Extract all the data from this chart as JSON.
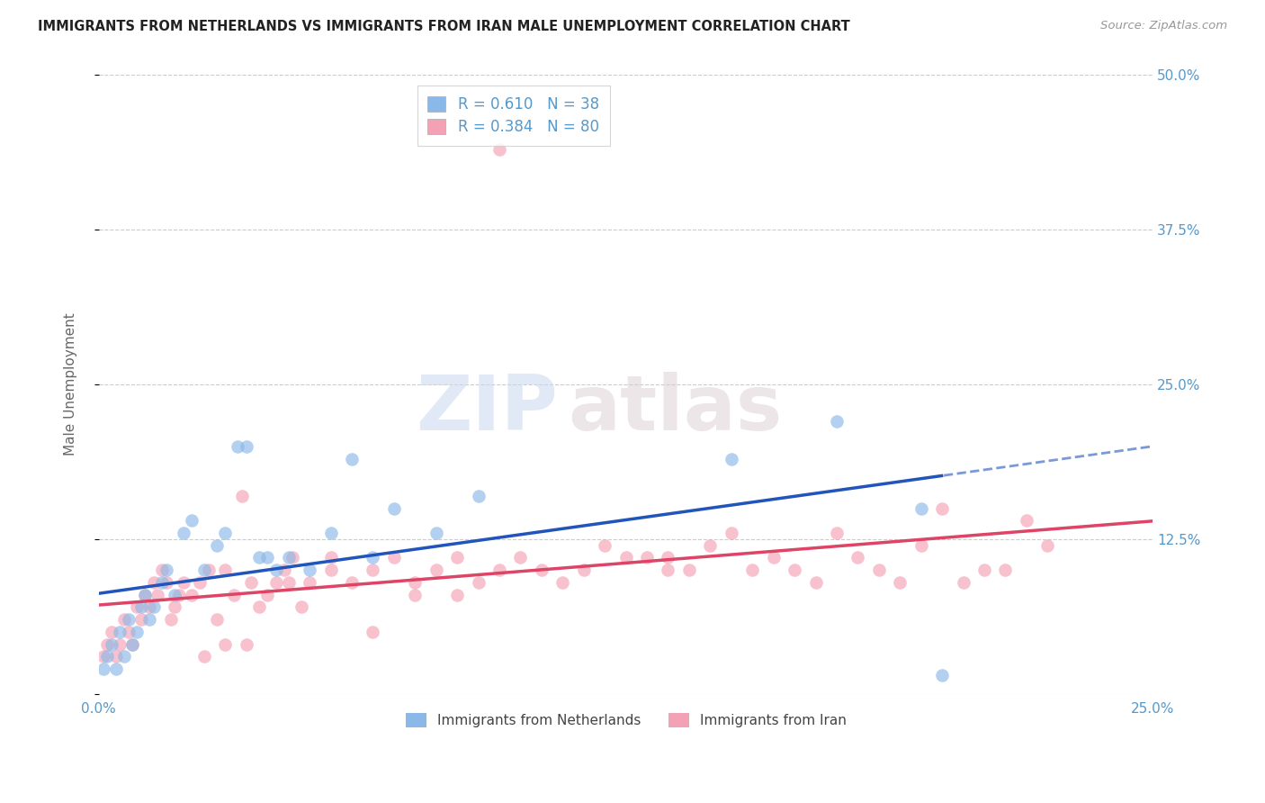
{
  "title": "IMMIGRANTS FROM NETHERLANDS VS IMMIGRANTS FROM IRAN MALE UNEMPLOYMENT CORRELATION CHART",
  "source": "Source: ZipAtlas.com",
  "xlabel": "",
  "ylabel": "Male Unemployment",
  "xlim": [
    0,
    0.25
  ],
  "ylim": [
    0,
    0.5
  ],
  "xticks": [
    0.0,
    0.05,
    0.1,
    0.15,
    0.2,
    0.25
  ],
  "xticklabels": [
    "0.0%",
    "",
    "",
    "",
    "",
    "25.0%"
  ],
  "yticks": [
    0.0,
    0.125,
    0.25,
    0.375,
    0.5
  ],
  "yticklabels": [
    "",
    "12.5%",
    "25.0%",
    "37.5%",
    "50.0%"
  ],
  "color_netherlands": "#8ab8e8",
  "color_iran": "#f4a0b5",
  "color_netherlands_line": "#2255bb",
  "color_iran_line": "#dd4466",
  "legend_R_netherlands": "0.610",
  "legend_N_netherlands": "38",
  "legend_R_iran": "0.384",
  "legend_N_iran": "80",
  "legend_label_netherlands": "Immigrants from Netherlands",
  "legend_label_iran": "Immigrants from Iran",
  "netherlands_x": [
    0.001,
    0.002,
    0.003,
    0.004,
    0.005,
    0.006,
    0.007,
    0.008,
    0.009,
    0.01,
    0.011,
    0.012,
    0.013,
    0.015,
    0.016,
    0.018,
    0.02,
    0.022,
    0.025,
    0.028,
    0.03,
    0.033,
    0.035,
    0.038,
    0.04,
    0.042,
    0.045,
    0.05,
    0.055,
    0.06,
    0.065,
    0.07,
    0.08,
    0.09,
    0.15,
    0.175,
    0.195,
    0.2
  ],
  "netherlands_y": [
    0.02,
    0.03,
    0.04,
    0.02,
    0.05,
    0.03,
    0.06,
    0.04,
    0.05,
    0.07,
    0.08,
    0.06,
    0.07,
    0.09,
    0.1,
    0.08,
    0.13,
    0.14,
    0.1,
    0.12,
    0.13,
    0.2,
    0.2,
    0.11,
    0.11,
    0.1,
    0.11,
    0.1,
    0.13,
    0.19,
    0.11,
    0.15,
    0.13,
    0.16,
    0.19,
    0.22,
    0.15,
    0.015
  ],
  "iran_x": [
    0.001,
    0.002,
    0.003,
    0.004,
    0.005,
    0.006,
    0.007,
    0.008,
    0.009,
    0.01,
    0.011,
    0.012,
    0.013,
    0.014,
    0.015,
    0.016,
    0.017,
    0.018,
    0.019,
    0.02,
    0.022,
    0.024,
    0.026,
    0.028,
    0.03,
    0.032,
    0.034,
    0.036,
    0.038,
    0.04,
    0.042,
    0.044,
    0.046,
    0.048,
    0.05,
    0.055,
    0.06,
    0.065,
    0.07,
    0.075,
    0.08,
    0.085,
    0.09,
    0.095,
    0.1,
    0.105,
    0.11,
    0.115,
    0.12,
    0.125,
    0.13,
    0.135,
    0.14,
    0.145,
    0.15,
    0.155,
    0.16,
    0.165,
    0.17,
    0.175,
    0.18,
    0.185,
    0.19,
    0.195,
    0.2,
    0.205,
    0.21,
    0.215,
    0.22,
    0.225,
    0.025,
    0.035,
    0.045,
    0.055,
    0.065,
    0.075,
    0.085,
    0.135,
    0.095,
    0.03
  ],
  "iran_y": [
    0.03,
    0.04,
    0.05,
    0.03,
    0.04,
    0.06,
    0.05,
    0.04,
    0.07,
    0.06,
    0.08,
    0.07,
    0.09,
    0.08,
    0.1,
    0.09,
    0.06,
    0.07,
    0.08,
    0.09,
    0.08,
    0.09,
    0.1,
    0.06,
    0.1,
    0.08,
    0.16,
    0.09,
    0.07,
    0.08,
    0.09,
    0.1,
    0.11,
    0.07,
    0.09,
    0.1,
    0.09,
    0.1,
    0.11,
    0.09,
    0.1,
    0.11,
    0.09,
    0.1,
    0.11,
    0.1,
    0.09,
    0.1,
    0.12,
    0.11,
    0.11,
    0.11,
    0.1,
    0.12,
    0.13,
    0.1,
    0.11,
    0.1,
    0.09,
    0.13,
    0.11,
    0.1,
    0.09,
    0.12,
    0.15,
    0.09,
    0.1,
    0.1,
    0.14,
    0.12,
    0.03,
    0.04,
    0.09,
    0.11,
    0.05,
    0.08,
    0.08,
    0.1,
    0.44,
    0.04
  ],
  "watermark_zip": "ZIP",
  "watermark_atlas": "atlas",
  "background_color": "#ffffff",
  "grid_color": "#cccccc",
  "tick_color": "#5599cc",
  "nl_trend_split_x": 0.2
}
